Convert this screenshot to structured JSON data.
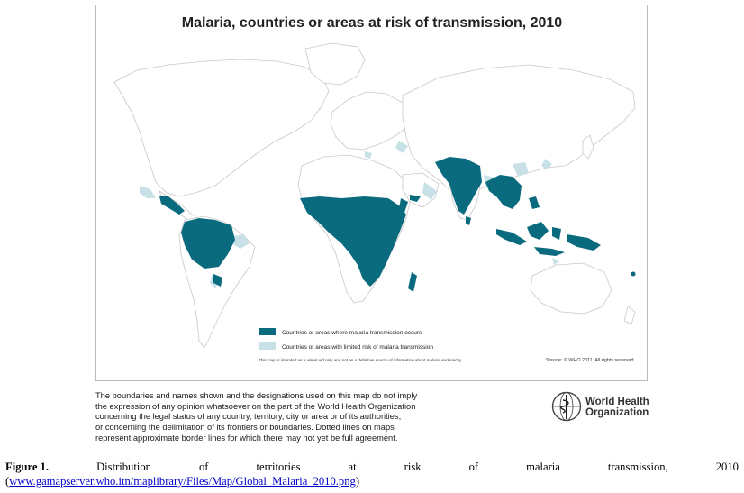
{
  "map": {
    "title": "Malaria, countries or areas at risk of transmission, 2010",
    "colors": {
      "transmission": "#0a6b7e",
      "limited_risk": "#c7e1e7",
      "land_outline": "#c8c8c8",
      "land_fill": "#ffffff"
    },
    "legend": [
      {
        "label": "Countries or areas where malaria transmission occurs",
        "color": "#0a6b7e"
      },
      {
        "label": "Countries or areas with limited risk of malaria transmission",
        "color": "#c7e1e7"
      }
    ],
    "disclaimer_small": "This map is intended as a visual aid only and not as a definitive source of information about malaria endemicity.",
    "source": "Source: © WHO 2011. All rights reserved."
  },
  "notice": {
    "lines": [
      "The boundaries and names shown and the designations used on this map do not imply",
      "the expression of any opinion whatsoever on the part of the World Health Organization",
      "concerning the legal status of any country, territory, city or area or of its authorities,",
      "or concerning the delimitation of its frontiers or boundaries. Dotted lines on maps",
      "represent approximate border lines for which there may not yet be full agreement."
    ]
  },
  "who_logo": {
    "line1": "World Health",
    "line2": "Organization",
    "icon": "who-emblem-icon"
  },
  "caption": {
    "label": "Figure 1.",
    "words": [
      "Distribution",
      "of",
      "territories",
      "at",
      "risk",
      "of",
      "malaria",
      "transmission,",
      "2010"
    ],
    "link": "www.gamapserver.who.itn/maplibrary/Files/Map/Global_Malaria_2010.png",
    "open_paren": "(",
    "close_paren": ")"
  }
}
